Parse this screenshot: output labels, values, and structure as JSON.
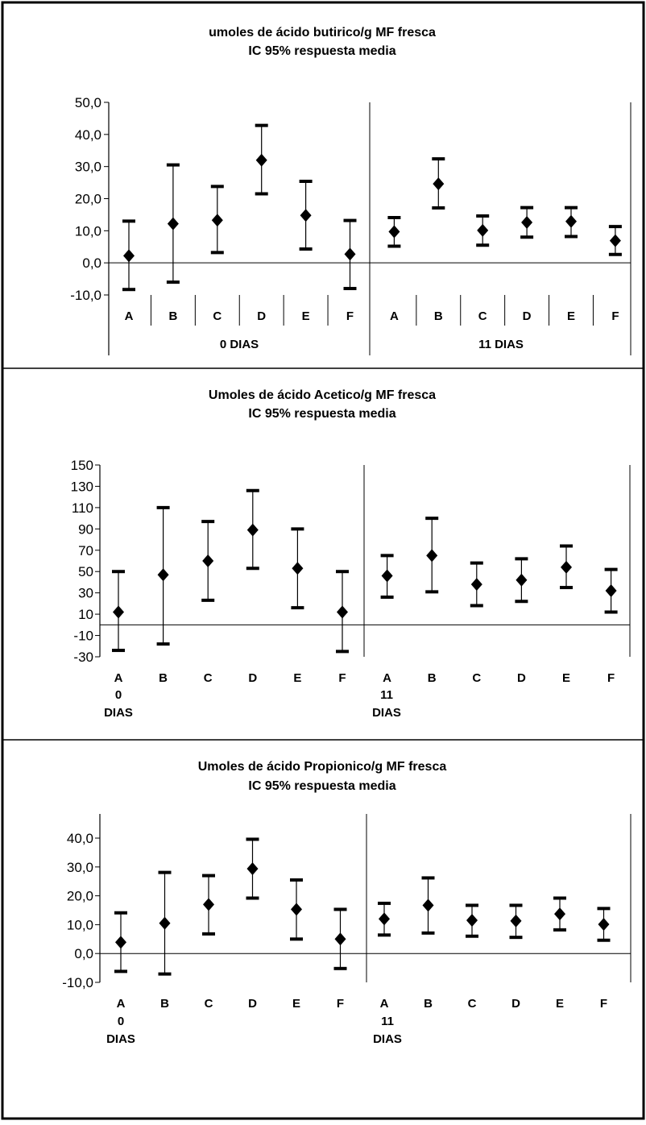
{
  "chart_data": [
    {
      "type": "scatter",
      "title": "umoles de ácido butirico/g MF fresca",
      "subtitle": "IC 95% respuesta media",
      "xlabel": "",
      "ylabel": "",
      "ylim": [
        -10,
        50
      ],
      "yticks": [
        "50,0",
        "40,0",
        "30,0",
        "20,0",
        "10,0",
        "0,0",
        "-10,0"
      ],
      "categories": [
        "A",
        "B",
        "C",
        "D",
        "E",
        "F",
        "A",
        "B",
        "C",
        "D",
        "E",
        "F"
      ],
      "groups": [
        "0 DIAS",
        "11 DIAS"
      ],
      "values": [
        2.2,
        12.2,
        13.3,
        32.0,
        14.8,
        2.7,
        9.7,
        24.6,
        10.1,
        12.6,
        12.9,
        6.9
      ],
      "lower": [
        -8.3,
        -6.0,
        3.2,
        21.5,
        4.3,
        -8.0,
        5.2,
        17.1,
        5.5,
        8.0,
        8.2,
        2.6
      ],
      "upper": [
        13.0,
        30.5,
        23.8,
        42.8,
        25.4,
        13.2,
        14.1,
        32.4,
        14.6,
        17.2,
        17.2,
        11.3
      ]
    },
    {
      "type": "scatter",
      "title": "Umoles de ácido Acetico/g MF fresca",
      "subtitle": "IC 95% respuesta media",
      "xlabel": "",
      "ylabel": "",
      "ylim": [
        -30,
        150
      ],
      "yticks": [
        "150",
        "130",
        "110",
        "90",
        "70",
        "50",
        "30",
        "10",
        "-10",
        "-30"
      ],
      "categories": [
        "A",
        "B",
        "C",
        "D",
        "E",
        "F",
        "A",
        "B",
        "C",
        "D",
        "E",
        "F"
      ],
      "groups": [
        "0\nDIAS",
        "11\nDIAS"
      ],
      "values": [
        12,
        47,
        60,
        89,
        53,
        12,
        46,
        65,
        38,
        42,
        54,
        32
      ],
      "lower": [
        -24,
        -18,
        23,
        53,
        16,
        -25,
        26,
        31,
        18,
        22,
        35,
        12
      ],
      "upper": [
        50,
        110,
        97,
        126,
        90,
        50,
        65,
        100,
        58,
        62,
        74,
        52
      ]
    },
    {
      "type": "scatter",
      "title": "Umoles de ácido Propionico/g MF fresca",
      "subtitle": "IC 95% respuesta media",
      "xlabel": "",
      "ylabel": "",
      "ylim": [
        -10,
        40
      ],
      "yticks": [
        "40,0",
        "30,0",
        "20,0",
        "10,0",
        "0,0",
        "-10,0"
      ],
      "categories": [
        "A",
        "B",
        "C",
        "D",
        "E",
        "F",
        "A",
        "B",
        "C",
        "D",
        "E",
        "F"
      ],
      "groups": [
        "0\nDIAS",
        "11\nDIAS"
      ],
      "values": [
        3.9,
        10.5,
        17.0,
        29.4,
        15.3,
        5.0,
        12.0,
        16.7,
        11.5,
        11.3,
        13.7,
        10.1
      ],
      "lower": [
        -6.2,
        -7.1,
        6.8,
        19.2,
        5.0,
        -5.2,
        6.4,
        7.1,
        6.0,
        5.6,
        8.2,
        4.6
      ],
      "upper": [
        14.1,
        28.1,
        27.0,
        39.6,
        25.5,
        15.3,
        17.4,
        26.2,
        16.7,
        16.7,
        19.2,
        15.6
      ]
    }
  ],
  "style": {
    "line": "#000000",
    "marker": "#000000",
    "background": "#ffffff"
  }
}
